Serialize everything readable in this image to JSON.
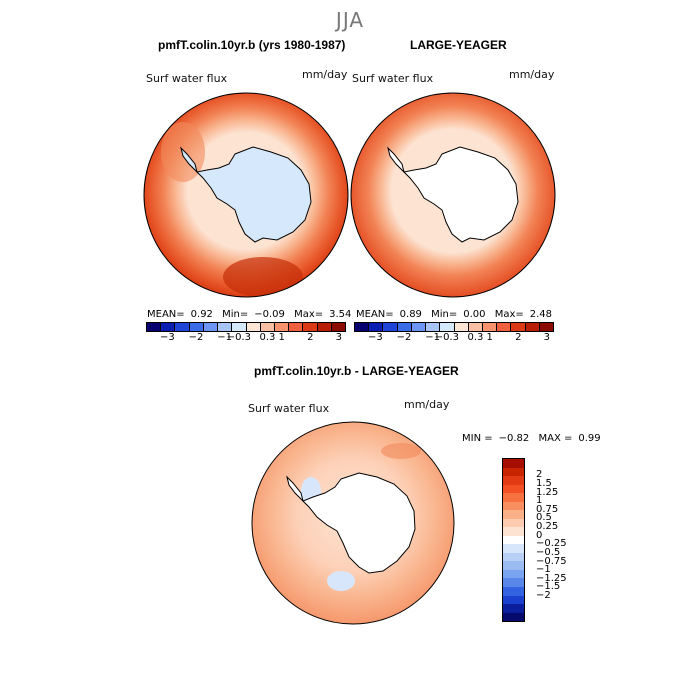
{
  "season": "JJA",
  "panels": [
    {
      "title": "pmfT.colin.10yr.b (yrs 1980-1987)",
      "variable": "Surf water flux",
      "units": "mm/day",
      "stats": {
        "mean_label": "MEAN=",
        "mean": "0.92",
        "min_label": "Min=",
        "min": "−0.09",
        "max_label": "Max=",
        "max": "3.54"
      },
      "land_color": "#d6e8fb"
    },
    {
      "title": "LARGE-YEAGER",
      "variable": "Surf water flux",
      "units": "mm/day",
      "stats": {
        "mean_label": "MEAN=",
        "mean": "0.89",
        "min_label": "Min=",
        "min": "0.00",
        "max_label": "Max=",
        "max": "2.48"
      },
      "land_color": "#ffffff"
    },
    {
      "title": "pmfT.colin.10yr.b - LARGE-YEAGER",
      "variable": "Surf water flux",
      "units": "mm/day",
      "minmax": {
        "min_label": "MIN =",
        "min": "−0.82",
        "max_label": "MAX =",
        "max": "0.99"
      },
      "land_color": "#ffffff"
    }
  ],
  "small_colorbar": {
    "colors": [
      "#08006e",
      "#0a1fb0",
      "#1f45d8",
      "#3a6ce8",
      "#6b95f0",
      "#a6c4f6",
      "#d6e8fb",
      "#fde5d6",
      "#f9bfa2",
      "#f6926e",
      "#ee6040",
      "#dc3a16",
      "#b81e06",
      "#8a0b00"
    ],
    "tick_labels": [
      "−3",
      "−2",
      "−1",
      "−0.3",
      "0.3",
      "1",
      "2",
      "3"
    ]
  },
  "diff_colorbar": {
    "colors": [
      "#a60f00",
      "#c92400",
      "#e23a12",
      "#f24f22",
      "#f7703f",
      "#f98f61",
      "#fbb187",
      "#fdcbaf",
      "#fde3d2",
      "#ffffff",
      "#d7e6fa",
      "#b8d0f6",
      "#9abcf3",
      "#7aa4ef",
      "#5987ea",
      "#3363e0",
      "#1a40cd",
      "#0b1f9e",
      "#050a6c"
    ],
    "tick_labels": [
      "2",
      "1.5",
      "1.25",
      "1",
      "0.75",
      "0.5",
      "0.25",
      "0",
      "−0.25",
      "−0.5",
      "−0.75",
      "−1",
      "−1.25",
      "−1.5",
      "−2"
    ]
  }
}
